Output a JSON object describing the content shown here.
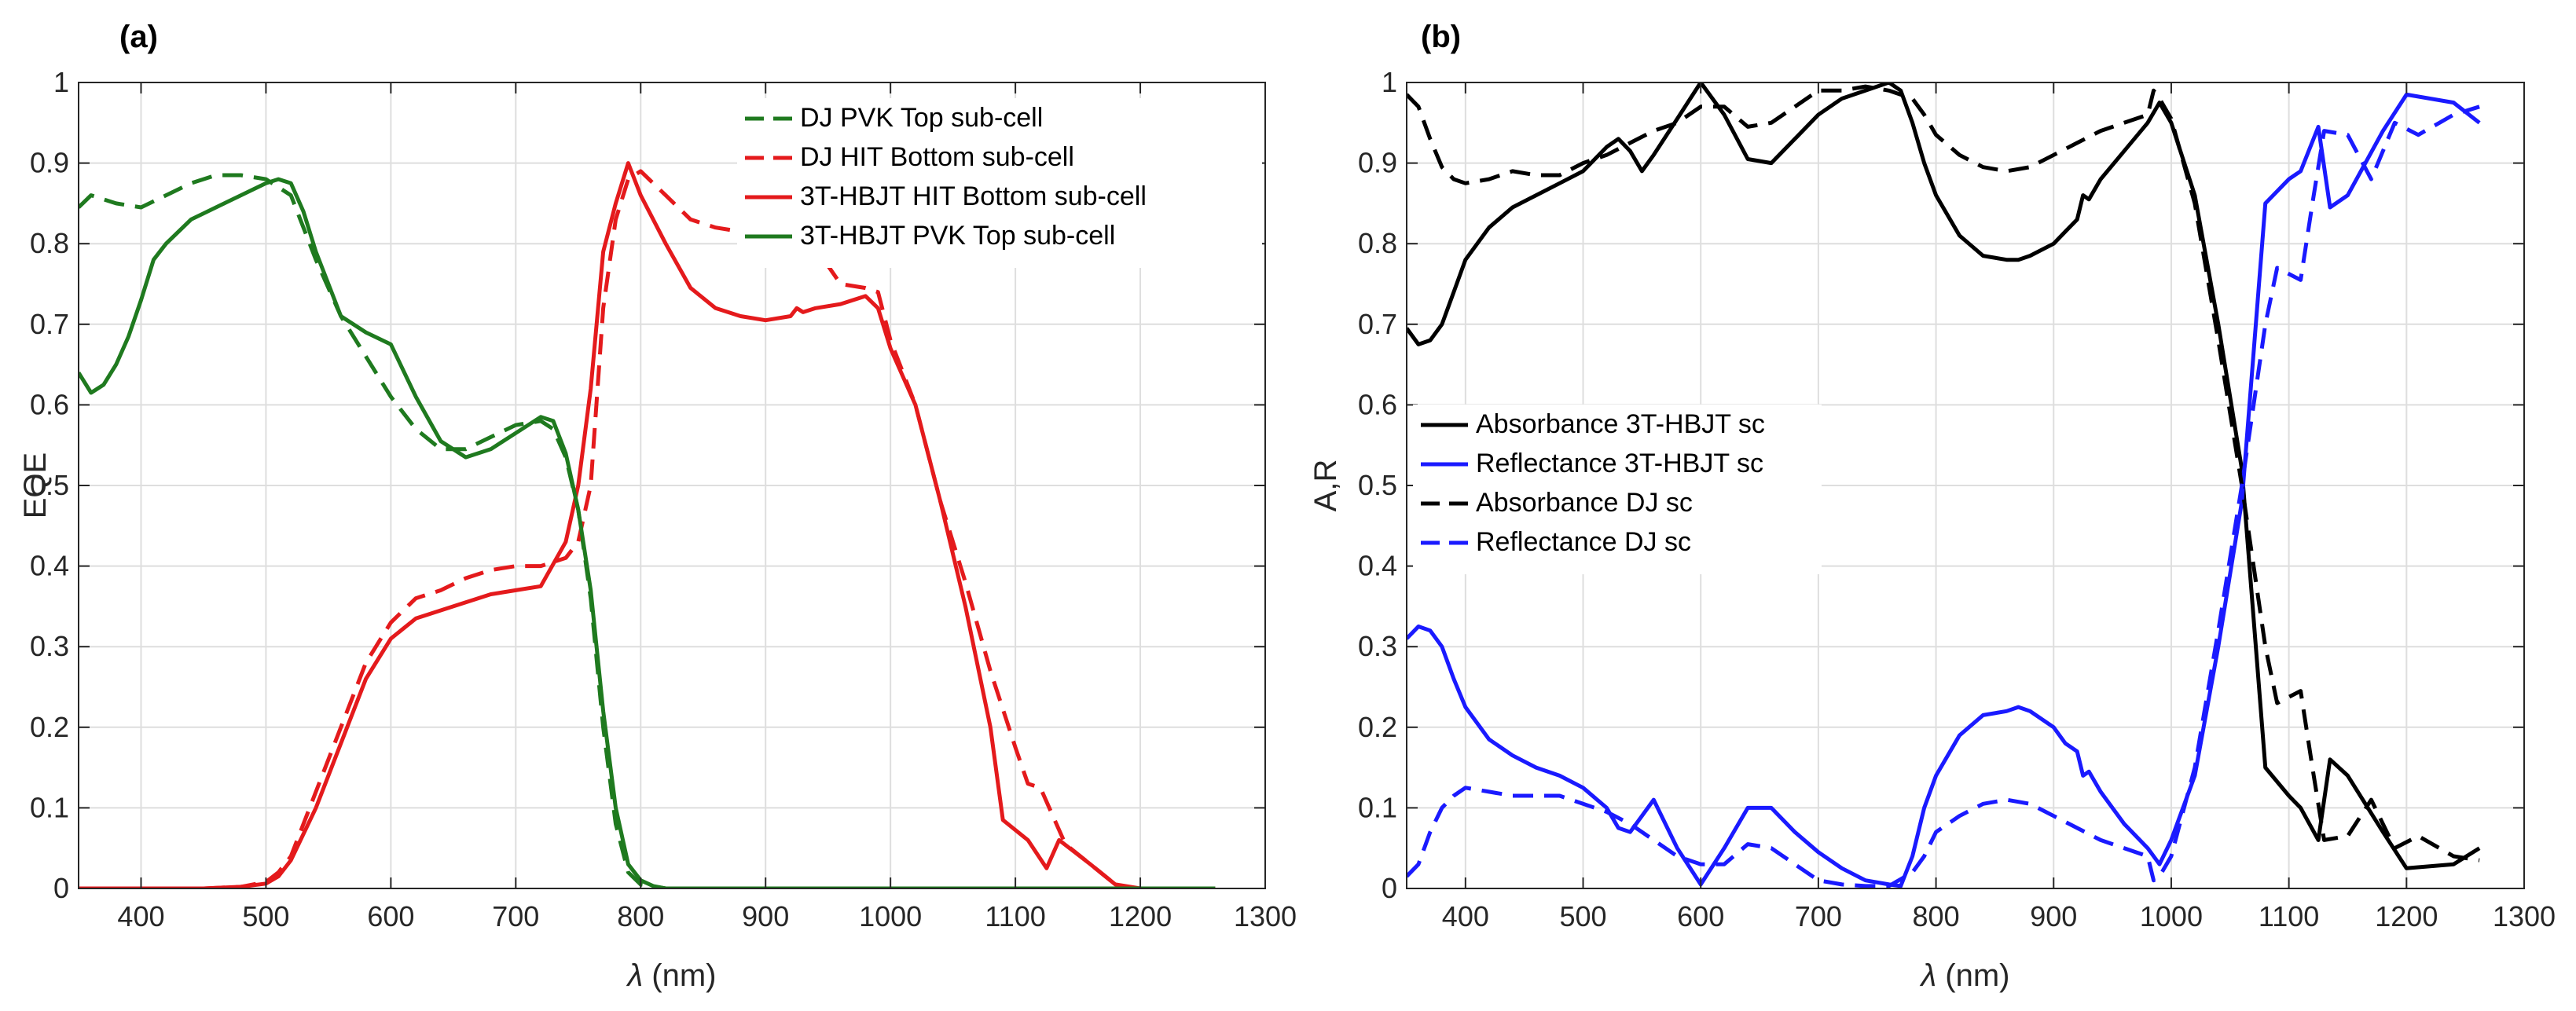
{
  "chart_data": [
    {
      "type": "line",
      "panel_label": "(a)",
      "xlabel_symbol": "λ",
      "xlabel_unit": " (nm)",
      "ylabel": "EQE",
      "xlim": [
        350,
        1300
      ],
      "ylim": [
        0,
        1
      ],
      "xticks": [
        400,
        500,
        600,
        700,
        800,
        900,
        1000,
        1100,
        1200,
        1300
      ],
      "yticks": [
        0,
        0.1,
        0.2,
        0.3,
        0.4,
        0.5,
        0.6,
        0.7,
        0.8,
        0.9,
        1
      ],
      "ytick_labels": [
        "0",
        "0.1",
        "0.2",
        "0.3",
        "0.4",
        "0.5",
        "0.6",
        "0.7",
        "0.8",
        "0.9",
        "1"
      ],
      "grid": true,
      "legend_position": "top-right",
      "series": [
        {
          "name": "DJ PVK Top sub-cell",
          "color": "#1f7a1f",
          "dashed": true,
          "x": [
            350,
            360,
            380,
            400,
            420,
            440,
            460,
            480,
            500,
            520,
            540,
            560,
            580,
            600,
            620,
            640,
            660,
            680,
            700,
            720,
            730,
            740,
            750,
            760,
            770,
            780,
            790,
            800,
            820,
            900,
            1000,
            1100,
            1200,
            1260
          ],
          "y": [
            0.845,
            0.86,
            0.85,
            0.845,
            0.86,
            0.875,
            0.885,
            0.885,
            0.88,
            0.86,
            0.78,
            0.71,
            0.66,
            0.61,
            0.57,
            0.545,
            0.545,
            0.56,
            0.575,
            0.58,
            0.57,
            0.535,
            0.47,
            0.36,
            0.2,
            0.08,
            0.02,
            0.005,
            0.0,
            0.0,
            0.0,
            0.0,
            0.0,
            0.0
          ]
        },
        {
          "name": "DJ HIT Bottom sub-cell",
          "color": "#e41a1c",
          "dashed": true,
          "x": [
            350,
            400,
            450,
            480,
            500,
            510,
            520,
            540,
            560,
            580,
            600,
            620,
            640,
            660,
            680,
            700,
            720,
            740,
            750,
            760,
            770,
            780,
            790,
            800,
            820,
            840,
            860,
            880,
            900,
            920,
            940,
            960,
            980,
            990,
            1000,
            1020,
            1040,
            1060,
            1080,
            1100,
            1110,
            1120,
            1140,
            1160,
            1180
          ],
          "y": [
            0.0,
            0.0,
            0.0,
            0.002,
            0.008,
            0.02,
            0.04,
            0.12,
            0.2,
            0.28,
            0.33,
            0.36,
            0.37,
            0.385,
            0.395,
            0.4,
            0.4,
            0.41,
            0.43,
            0.5,
            0.72,
            0.83,
            0.88,
            0.89,
            0.86,
            0.83,
            0.82,
            0.815,
            0.81,
            0.8,
            0.795,
            0.75,
            0.745,
            0.74,
            0.68,
            0.6,
            0.48,
            0.38,
            0.27,
            0.175,
            0.13,
            0.125,
            0.055,
            0.03,
            0.005
          ]
        },
        {
          "name": "3T-HBJT HIT Bottom sub-cell",
          "color": "#e41a1c",
          "dashed": false,
          "x": [
            350,
            400,
            450,
            480,
            500,
            510,
            520,
            540,
            560,
            580,
            600,
            620,
            640,
            660,
            680,
            700,
            720,
            740,
            750,
            760,
            770,
            780,
            790,
            800,
            820,
            840,
            860,
            880,
            900,
            920,
            925,
            930,
            940,
            960,
            980,
            990,
            1000,
            1020,
            1040,
            1060,
            1080,
            1090,
            1110,
            1125,
            1135,
            1160,
            1180,
            1200,
            1260
          ],
          "y": [
            0.0,
            0.0,
            0.0,
            0.002,
            0.006,
            0.015,
            0.035,
            0.1,
            0.18,
            0.26,
            0.31,
            0.335,
            0.345,
            0.355,
            0.365,
            0.37,
            0.375,
            0.43,
            0.5,
            0.62,
            0.79,
            0.85,
            0.9,
            0.86,
            0.8,
            0.745,
            0.72,
            0.71,
            0.705,
            0.71,
            0.72,
            0.715,
            0.72,
            0.725,
            0.735,
            0.72,
            0.67,
            0.6,
            0.48,
            0.35,
            0.2,
            0.085,
            0.06,
            0.025,
            0.06,
            0.03,
            0.005,
            0.0,
            0.0
          ]
        },
        {
          "name": "3T-HBJT PVK Top sub-cell",
          "color": "#1f7a1f",
          "dashed": false,
          "x": [
            350,
            360,
            370,
            380,
            390,
            400,
            410,
            420,
            440,
            460,
            480,
            500,
            510,
            520,
            530,
            540,
            550,
            560,
            580,
            600,
            620,
            640,
            660,
            680,
            700,
            720,
            730,
            740,
            750,
            760,
            770,
            780,
            790,
            800,
            810,
            820,
            900,
            1000,
            1100,
            1200,
            1260
          ],
          "y": [
            0.64,
            0.615,
            0.625,
            0.65,
            0.685,
            0.73,
            0.78,
            0.8,
            0.83,
            0.845,
            0.86,
            0.875,
            0.88,
            0.875,
            0.84,
            0.79,
            0.75,
            0.71,
            0.69,
            0.675,
            0.61,
            0.555,
            0.535,
            0.545,
            0.565,
            0.585,
            0.58,
            0.54,
            0.47,
            0.37,
            0.22,
            0.1,
            0.03,
            0.01,
            0.003,
            0.0,
            0.0,
            0.0,
            0.0,
            0.0,
            0.0
          ]
        }
      ]
    },
    {
      "type": "line",
      "panel_label": "(b)",
      "xlabel_symbol": "λ",
      "xlabel_unit": " (nm)",
      "ylabel": "A,R",
      "xlim": [
        350,
        1300
      ],
      "ylim": [
        0,
        1
      ],
      "xticks": [
        400,
        500,
        600,
        700,
        800,
        900,
        1000,
        1100,
        1200,
        1300
      ],
      "yticks": [
        0,
        0.1,
        0.2,
        0.3,
        0.4,
        0.5,
        0.6,
        0.7,
        0.8,
        0.9,
        1
      ],
      "ytick_labels": [
        "0",
        "0.1",
        "0.2",
        "0.3",
        "0.4",
        "0.5",
        "0.6",
        "0.7",
        "0.8",
        "0.9",
        "1"
      ],
      "grid": true,
      "legend_position": "middle-left",
      "series": [
        {
          "name": "Absorbance 3T-HBJT sc",
          "color": "#000000",
          "dashed": false,
          "x": [
            350,
            360,
            370,
            380,
            390,
            400,
            420,
            440,
            460,
            480,
            500,
            520,
            530,
            540,
            550,
            560,
            580,
            600,
            620,
            640,
            660,
            680,
            700,
            720,
            740,
            760,
            770,
            780,
            790,
            800,
            820,
            840,
            860,
            870,
            880,
            900,
            910,
            920,
            925,
            930,
            940,
            960,
            980,
            990,
            1000,
            1020,
            1040,
            1060,
            1080,
            1100,
            1110,
            1125,
            1135,
            1150,
            1180,
            1200,
            1240,
            1262
          ],
          "y": [
            0.695,
            0.675,
            0.68,
            0.7,
            0.74,
            0.78,
            0.82,
            0.845,
            0.86,
            0.875,
            0.89,
            0.92,
            0.93,
            0.915,
            0.89,
            0.91,
            0.955,
            1.0,
            0.96,
            0.905,
            0.9,
            0.93,
            0.96,
            0.98,
            0.99,
            1.0,
            0.99,
            0.95,
            0.9,
            0.86,
            0.81,
            0.785,
            0.78,
            0.78,
            0.785,
            0.8,
            0.815,
            0.83,
            0.86,
            0.855,
            0.88,
            0.915,
            0.95,
            0.975,
            0.95,
            0.86,
            0.7,
            0.52,
            0.15,
            0.115,
            0.1,
            0.06,
            0.16,
            0.14,
            0.07,
            0.025,
            0.03,
            0.05
          ]
        },
        {
          "name": "Reflectance 3T-HBJT sc",
          "color": "#1a1aff",
          "dashed": false,
          "x": [
            350,
            360,
            370,
            380,
            390,
            400,
            420,
            440,
            460,
            480,
            500,
            520,
            530,
            540,
            550,
            560,
            580,
            600,
            620,
            640,
            660,
            680,
            700,
            720,
            740,
            760,
            770,
            780,
            790,
            800,
            820,
            840,
            860,
            870,
            880,
            900,
            910,
            920,
            925,
            930,
            940,
            960,
            980,
            990,
            1000,
            1020,
            1040,
            1060,
            1080,
            1100,
            1110,
            1125,
            1135,
            1150,
            1180,
            1200,
            1240,
            1262
          ],
          "y": [
            0.31,
            0.325,
            0.32,
            0.3,
            0.26,
            0.225,
            0.185,
            0.165,
            0.15,
            0.14,
            0.125,
            0.1,
            0.075,
            0.07,
            0.09,
            0.11,
            0.05,
            0.005,
            0.05,
            0.1,
            0.1,
            0.07,
            0.045,
            0.025,
            0.01,
            0.005,
            0.003,
            0.04,
            0.1,
            0.14,
            0.19,
            0.215,
            0.22,
            0.225,
            0.22,
            0.2,
            0.18,
            0.17,
            0.14,
            0.145,
            0.12,
            0.08,
            0.05,
            0.03,
            0.06,
            0.14,
            0.3,
            0.48,
            0.85,
            0.88,
            0.89,
            0.945,
            0.845,
            0.86,
            0.94,
            0.985,
            0.975,
            0.95
          ]
        },
        {
          "name": "Absorbance DJ sc",
          "color": "#000000",
          "dashed": true,
          "x": [
            350,
            360,
            370,
            380,
            390,
            400,
            420,
            440,
            460,
            480,
            500,
            520,
            540,
            560,
            580,
            600,
            620,
            640,
            660,
            680,
            700,
            720,
            740,
            760,
            780,
            790,
            800,
            820,
            840,
            860,
            880,
            900,
            920,
            940,
            960,
            980,
            985,
            990,
            1000,
            1020,
            1040,
            1060,
            1080,
            1090,
            1110,
            1120,
            1130,
            1150,
            1170,
            1190,
            1210,
            1240,
            1262
          ],
          "y": [
            0.985,
            0.97,
            0.93,
            0.895,
            0.88,
            0.875,
            0.88,
            0.89,
            0.885,
            0.885,
            0.9,
            0.91,
            0.925,
            0.94,
            0.95,
            0.97,
            0.97,
            0.945,
            0.95,
            0.97,
            0.99,
            0.99,
            0.995,
            0.99,
            0.98,
            0.96,
            0.935,
            0.91,
            0.895,
            0.89,
            0.895,
            0.91,
            0.925,
            0.94,
            0.95,
            0.96,
            0.99,
            0.98,
            0.955,
            0.85,
            0.68,
            0.5,
            0.3,
            0.23,
            0.245,
            0.15,
            0.06,
            0.065,
            0.11,
            0.05,
            0.065,
            0.04,
            0.035
          ]
        },
        {
          "name": "Reflectance DJ sc",
          "color": "#1a1aff",
          "dashed": true,
          "x": [
            350,
            360,
            370,
            380,
            390,
            400,
            420,
            440,
            460,
            480,
            500,
            520,
            540,
            560,
            580,
            600,
            620,
            640,
            660,
            680,
            700,
            720,
            740,
            760,
            780,
            790,
            800,
            820,
            840,
            860,
            880,
            900,
            920,
            940,
            960,
            980,
            985,
            990,
            1000,
            1020,
            1040,
            1060,
            1080,
            1090,
            1110,
            1120,
            1130,
            1150,
            1170,
            1190,
            1210,
            1240,
            1262
          ],
          "y": [
            0.015,
            0.03,
            0.07,
            0.1,
            0.115,
            0.125,
            0.12,
            0.115,
            0.115,
            0.115,
            0.105,
            0.095,
            0.08,
            0.06,
            0.04,
            0.03,
            0.03,
            0.055,
            0.05,
            0.03,
            0.01,
            0.005,
            0.003,
            0.003,
            0.02,
            0.04,
            0.07,
            0.09,
            0.105,
            0.11,
            0.105,
            0.09,
            0.075,
            0.06,
            0.05,
            0.04,
            0.01,
            0.015,
            0.04,
            0.15,
            0.32,
            0.5,
            0.7,
            0.77,
            0.755,
            0.85,
            0.94,
            0.935,
            0.88,
            0.95,
            0.935,
            0.96,
            0.97
          ]
        }
      ]
    }
  ]
}
